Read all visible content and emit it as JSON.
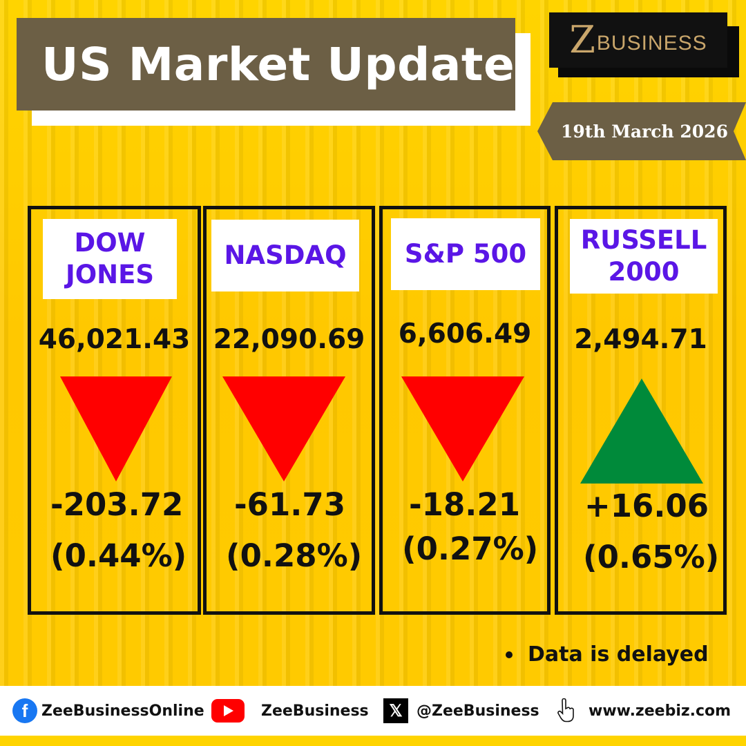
{
  "header": {
    "title": "US Market Update",
    "logo_mark": "Z",
    "logo_text": "BUSINESS",
    "date": "19th March 2026"
  },
  "indices": [
    {
      "name": "DOW\nJONES",
      "value": "46,021.43",
      "direction": "down",
      "change": "-203.72",
      "percent": "(0.44%)"
    },
    {
      "name": "NASDAQ",
      "value": "22,090.69",
      "direction": "down",
      "change": "-61.73",
      "percent": "(0.28%)"
    },
    {
      "name": "S&P 500",
      "value": "6,606.49",
      "direction": "down",
      "change": "-18.21",
      "percent": "(0.27%)"
    },
    {
      "name": "RUSSELL\n2000",
      "value": "2,494.71",
      "direction": "up",
      "change": "+16.06",
      "percent": "(0.65%)"
    }
  ],
  "colors": {
    "down": "#ff0000",
    "up": "#008a3a",
    "name_text": "#5a16e6",
    "title_bg": "#6c5f45"
  },
  "note": "Data is delayed",
  "footer": {
    "facebook": "ZeeBusinessOnline",
    "youtube": "ZeeBusiness",
    "x": "@ZeeBusiness",
    "website": "www.zeebiz.com",
    "icons": [
      "facebook-icon",
      "youtube-icon",
      "x-icon",
      "pointer-hand-icon"
    ]
  }
}
